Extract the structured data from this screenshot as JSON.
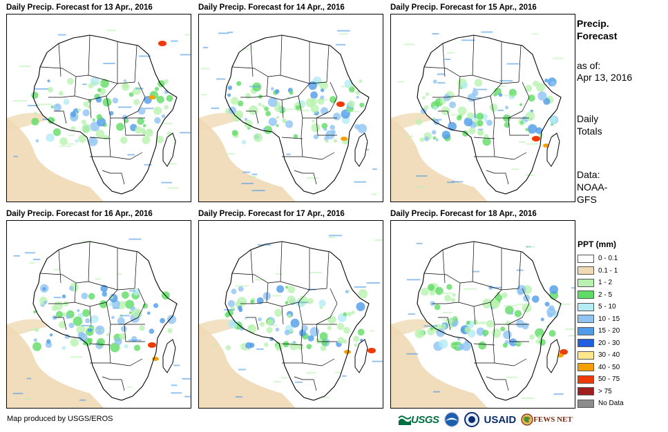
{
  "panels": [
    {
      "title": "Daily Precip. Forecast for 13 Apr., 2016"
    },
    {
      "title": "Daily Precip. Forecast for 14 Apr., 2016"
    },
    {
      "title": "Daily Precip. Forecast for 15 Apr., 2016"
    },
    {
      "title": "Daily Precip. Forecast for 16 Apr., 2016"
    },
    {
      "title": "Daily Precip. Forecast for 17 Apr., 2016"
    },
    {
      "title": "Daily Precip. Forecast for 18 Apr., 2016"
    }
  ],
  "sidebar": {
    "title_line1": "Precip.",
    "title_line2": "Forecast",
    "asof_label": "as of:",
    "asof_date": "Apr 13, 2016",
    "totals_line1": "Daily",
    "totals_line2": "Totals",
    "data_label": "Data:",
    "data_line1": "NOAA-",
    "data_line2": "GFS"
  },
  "legend": {
    "title": "PPT (mm)",
    "items": [
      {
        "label": "0 - 0.1",
        "color": "#ffffff"
      },
      {
        "label": "0.1 - 1",
        "color": "#f0d9b5"
      },
      {
        "label": "1 - 2",
        "color": "#b9f2b0"
      },
      {
        "label": "2 - 5",
        "color": "#5fdc64"
      },
      {
        "label": "5 - 10",
        "color": "#b3ecf4"
      },
      {
        "label": "10 - 15",
        "color": "#8fc3f2"
      },
      {
        "label": "15 - 20",
        "color": "#4f9be8"
      },
      {
        "label": "20 - 30",
        "color": "#1f5fe0"
      },
      {
        "label": "30 - 40",
        "color": "#fce78c"
      },
      {
        "label": "40 - 50",
        "color": "#f5a000"
      },
      {
        "label": "50 - 75",
        "color": "#ee3a06"
      },
      {
        "label": "> 75",
        "color": "#a01e1e"
      },
      {
        "label": "No Data",
        "color": "#8c8c8c"
      }
    ]
  },
  "credit": "Map produced by USGS/EROS",
  "logos": {
    "usgs": "USGS",
    "usaid": "USAID",
    "fews": "FEWS NET"
  }
}
